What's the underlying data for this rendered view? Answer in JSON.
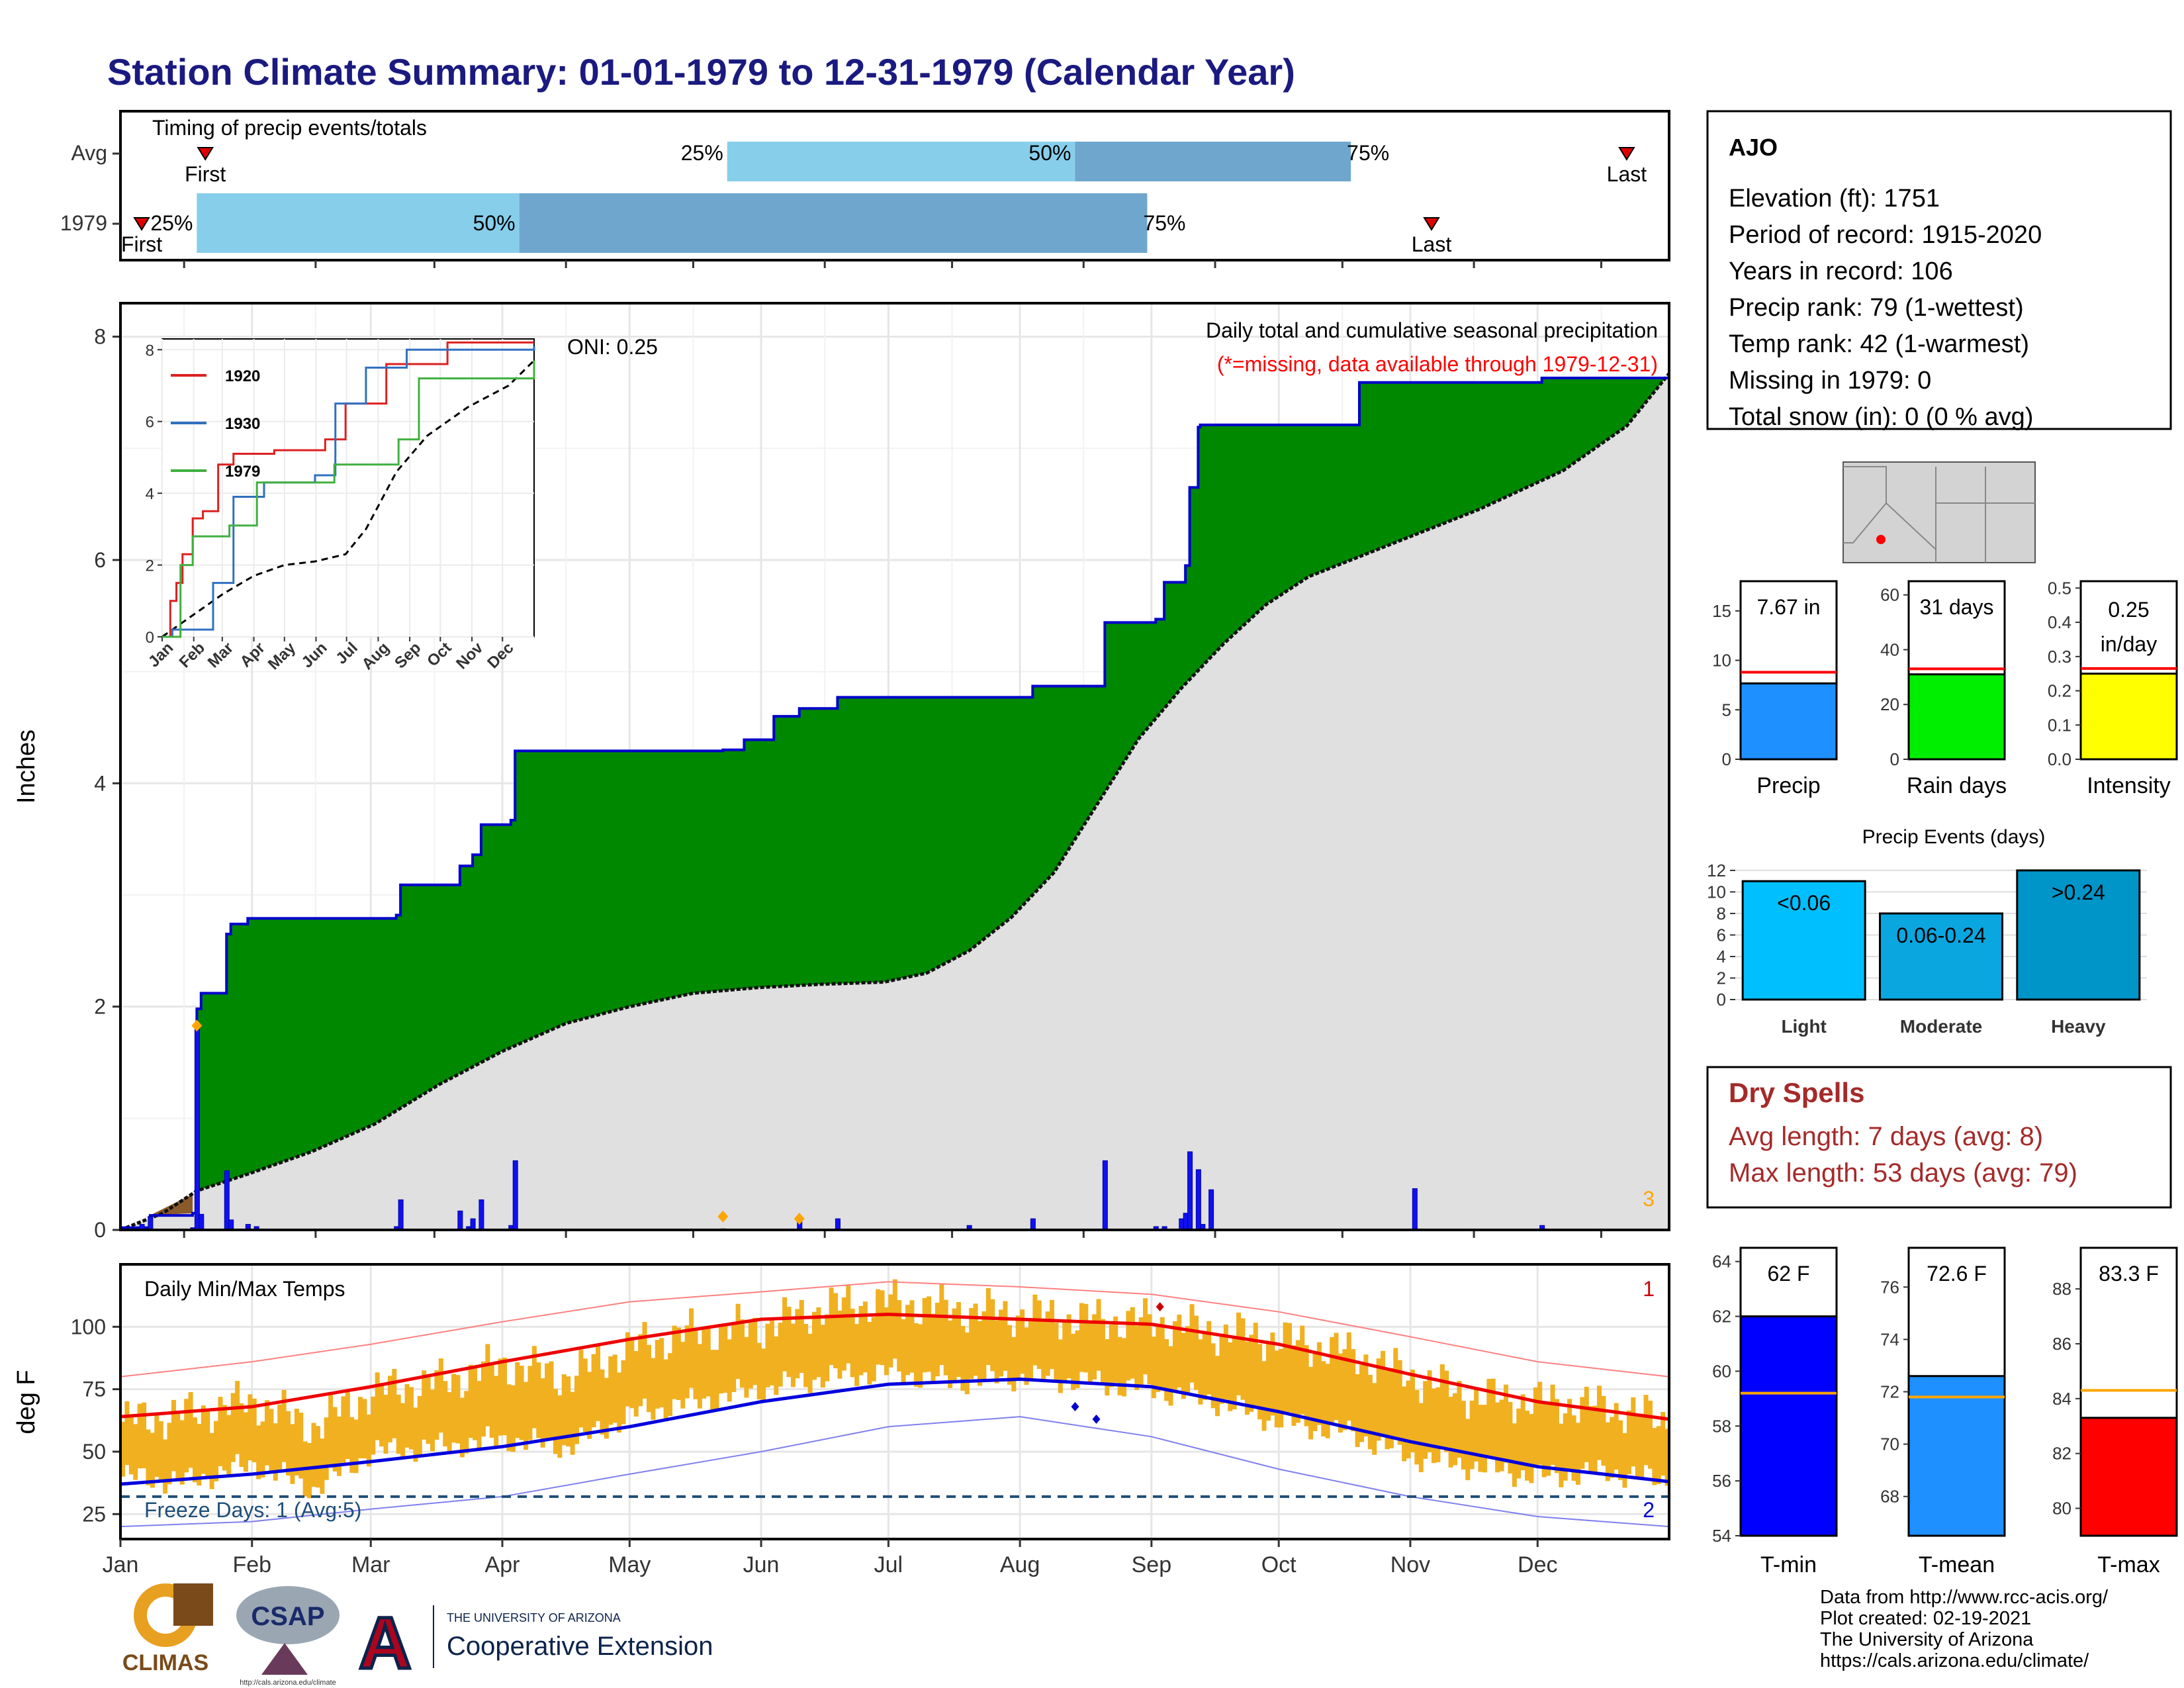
{
  "title": "Station Climate Summary: 01-01-1979 to 12-31-1979 (Calendar Year)",
  "months": [
    "Jan",
    "Feb",
    "Mar",
    "Apr",
    "May",
    "Jun",
    "Jul",
    "Aug",
    "Sep",
    "Oct",
    "Nov",
    "Dec"
  ],
  "colors": {
    "title": "#1a1a80",
    "light_blue": "#87ceeb",
    "mid_blue": "#6ea6cd",
    "green": "#008800",
    "cum_line": "#0000cc",
    "normal_fill": "#e0e0e0",
    "bar_blue": "#1111ee",
    "orange": "#ffa500",
    "red": "#ff0000",
    "dry_spell": "#a52a2a",
    "freeze_line": "#1f4e79",
    "temp_band": "#f0b020"
  },
  "timing": {
    "title": "Timing of precip events/totals",
    "rows": [
      {
        "label": "Avg",
        "first_label": "First",
        "last_label": "Last",
        "first_day": 20,
        "p25_day": 143,
        "p50_day": 225,
        "p75_day": 290,
        "last_day": 355,
        "p25_label": "25%",
        "p50_label": "50%",
        "p75_label": "75%"
      },
      {
        "label": "1979",
        "first_label": "First",
        "last_label": "Last",
        "first_day": 5,
        "p25_day": 18,
        "p50_day": 94,
        "p75_day": 242,
        "last_day": 309,
        "p25_label": "25%",
        "p50_label": "50%",
        "p75_label": "75%"
      }
    ]
  },
  "precip": {
    "ylabel": "Inches",
    "title": "Daily total and cumulative seasonal precipitation",
    "subtitle": "(*=missing, data available through 1979-12-31)",
    "oni": "ONI: 0.25",
    "corner_label": "3",
    "yticks": [
      "0",
      "2",
      "4",
      "6",
      "8"
    ],
    "ylim": [
      0,
      8.3
    ],
    "cumulative_1979": [
      [
        0,
        0.02
      ],
      [
        7,
        0.13
      ],
      [
        17,
        0.15
      ],
      [
        18,
        1.98
      ],
      [
        19,
        2.12
      ],
      [
        25,
        2.65
      ],
      [
        26,
        2.74
      ],
      [
        30,
        2.79
      ],
      [
        65,
        2.82
      ],
      [
        66,
        3.09
      ],
      [
        80,
        3.26
      ],
      [
        83,
        3.36
      ],
      [
        85,
        3.63
      ],
      [
        92,
        3.67
      ],
      [
        93,
        4.29
      ],
      [
        142,
        4.3
      ],
      [
        147,
        4.39
      ],
      [
        154,
        4.6
      ],
      [
        160,
        4.67
      ],
      [
        169,
        4.77
      ],
      [
        215,
        4.87
      ],
      [
        232,
        5.44
      ],
      [
        244,
        5.47
      ],
      [
        246,
        5.8
      ],
      [
        251,
        5.95
      ],
      [
        252,
        6.65
      ],
      [
        254,
        7.19
      ],
      [
        254.5,
        7.21
      ],
      [
        292,
        7.59
      ],
      [
        335,
        7.63
      ],
      [
        365,
        7.67
      ]
    ],
    "normal_cumulative": [
      [
        0,
        0
      ],
      [
        10,
        0.15
      ],
      [
        18,
        0.35
      ],
      [
        30,
        0.5
      ],
      [
        45,
        0.7
      ],
      [
        60,
        0.95
      ],
      [
        75,
        1.3
      ],
      [
        90,
        1.6
      ],
      [
        105,
        1.85
      ],
      [
        120,
        2.0
      ],
      [
        135,
        2.12
      ],
      [
        150,
        2.17
      ],
      [
        165,
        2.2
      ],
      [
        180,
        2.22
      ],
      [
        190,
        2.3
      ],
      [
        200,
        2.5
      ],
      [
        210,
        2.8
      ],
      [
        220,
        3.2
      ],
      [
        230,
        3.8
      ],
      [
        240,
        4.4
      ],
      [
        250,
        4.85
      ],
      [
        260,
        5.25
      ],
      [
        270,
        5.6
      ],
      [
        280,
        5.85
      ],
      [
        300,
        6.15
      ],
      [
        320,
        6.45
      ],
      [
        340,
        6.8
      ],
      [
        355,
        7.2
      ],
      [
        365,
        7.67
      ]
    ],
    "daily_bars": [
      [
        5,
        0.05
      ],
      [
        7,
        0.12
      ],
      [
        17,
        0.02
      ],
      [
        18,
        1.83
      ],
      [
        19,
        0.14
      ],
      [
        25,
        0.53
      ],
      [
        26,
        0.09
      ],
      [
        30,
        0.05
      ],
      [
        32,
        0.03
      ],
      [
        65,
        0.03
      ],
      [
        66,
        0.27
      ],
      [
        80,
        0.17
      ],
      [
        82,
        0.03
      ],
      [
        83,
        0.1
      ],
      [
        85,
        0.27
      ],
      [
        92,
        0.04
      ],
      [
        93,
        0.62
      ],
      [
        142,
        0.01
      ],
      [
        160,
        0.07
      ],
      [
        169,
        0.1
      ],
      [
        200,
        0.04
      ],
      [
        215,
        0.1
      ],
      [
        232,
        0.62
      ],
      [
        244,
        0.03
      ],
      [
        246,
        0.03
      ],
      [
        250,
        0.1
      ],
      [
        251,
        0.15
      ],
      [
        252,
        0.7
      ],
      [
        254,
        0.54
      ],
      [
        255,
        0.05
      ],
      [
        257,
        0.36
      ],
      [
        305,
        0.37
      ],
      [
        335,
        0.04
      ]
    ],
    "missing_markers": [
      [
        18,
        1.83
      ],
      [
        142,
        0.12
      ],
      [
        160,
        0.1
      ]
    ]
  },
  "inset": {
    "yticks": [
      "0",
      "2",
      "4",
      "6",
      "8"
    ],
    "months": [
      "Jan",
      "Feb",
      "Mar",
      "Apr",
      "May",
      "Jun",
      "Jul",
      "Aug",
      "Sep",
      "Oct",
      "Nov",
      "Dec"
    ],
    "legend": [
      {
        "name": "1920",
        "color": "#dd2020"
      },
      {
        "name": "1930",
        "color": "#3070c0"
      },
      {
        "name": "1979",
        "color": "#40b040"
      }
    ],
    "series": {
      "1920": [
        [
          0,
          0
        ],
        [
          8,
          1
        ],
        [
          14,
          1.5
        ],
        [
          20,
          2.3
        ],
        [
          30,
          3.3
        ],
        [
          40,
          3.5
        ],
        [
          55,
          4.8
        ],
        [
          70,
          5.1
        ],
        [
          110,
          5.2
        ],
        [
          160,
          5.5
        ],
        [
          180,
          6.5
        ],
        [
          220,
          7.6
        ],
        [
          280,
          8.2
        ],
        [
          365,
          8.2
        ]
      ],
      "1930": [
        [
          0,
          0
        ],
        [
          10,
          0.2
        ],
        [
          50,
          1.5
        ],
        [
          70,
          3.9
        ],
        [
          100,
          4.3
        ],
        [
          150,
          4.5
        ],
        [
          170,
          6.5
        ],
        [
          200,
          7.5
        ],
        [
          240,
          8.0
        ],
        [
          365,
          8.1
        ]
      ],
      "1979": [
        [
          0,
          0
        ],
        [
          18,
          2.0
        ],
        [
          30,
          2.8
        ],
        [
          66,
          3.1
        ],
        [
          93,
          4.3
        ],
        [
          169,
          4.8
        ],
        [
          232,
          5.5
        ],
        [
          252,
          7.2
        ],
        [
          365,
          7.7
        ]
      ],
      "normal": [
        [
          0,
          0
        ],
        [
          30,
          0.6
        ],
        [
          60,
          1.2
        ],
        [
          90,
          1.7
        ],
        [
          120,
          2.0
        ],
        [
          150,
          2.1
        ],
        [
          180,
          2.3
        ],
        [
          200,
          3.0
        ],
        [
          230,
          4.6
        ],
        [
          260,
          5.6
        ],
        [
          300,
          6.4
        ],
        [
          340,
          7.0
        ],
        [
          365,
          7.7
        ]
      ]
    }
  },
  "temps": {
    "ylabel": "deg F",
    "title": "Daily Min/Max Temps",
    "freeze_label": "Freeze Days: 1 (Avg:5)",
    "freeze_line_value": 32,
    "corner_top": "1",
    "corner_bottom": "2",
    "yticks": [
      "25",
      "50",
      "75",
      "100"
    ],
    "ylim": [
      15,
      125
    ],
    "normal_max": [
      [
        0,
        64
      ],
      [
        31,
        68
      ],
      [
        59,
        76
      ],
      [
        90,
        86
      ],
      [
        120,
        95
      ],
      [
        151,
        103
      ],
      [
        181,
        105
      ],
      [
        212,
        103
      ],
      [
        243,
        101
      ],
      [
        273,
        93
      ],
      [
        304,
        81
      ],
      [
        334,
        70
      ],
      [
        365,
        63
      ]
    ],
    "normal_min": [
      [
        0,
        37
      ],
      [
        31,
        41
      ],
      [
        59,
        46
      ],
      [
        90,
        52
      ],
      [
        120,
        60
      ],
      [
        151,
        70
      ],
      [
        181,
        77
      ],
      [
        212,
        79
      ],
      [
        243,
        76
      ],
      [
        273,
        66
      ],
      [
        304,
        54
      ],
      [
        334,
        44
      ],
      [
        365,
        38
      ]
    ],
    "record_max": [
      [
        0,
        80
      ],
      [
        31,
        86
      ],
      [
        59,
        93
      ],
      [
        90,
        102
      ],
      [
        120,
        110
      ],
      [
        151,
        114
      ],
      [
        181,
        118
      ],
      [
        212,
        116
      ],
      [
        243,
        113
      ],
      [
        273,
        106
      ],
      [
        304,
        96
      ],
      [
        334,
        86
      ],
      [
        365,
        80
      ]
    ],
    "record_min": [
      [
        0,
        20
      ],
      [
        31,
        22
      ],
      [
        59,
        27
      ],
      [
        90,
        32
      ],
      [
        120,
        41
      ],
      [
        151,
        50
      ],
      [
        181,
        60
      ],
      [
        212,
        64
      ],
      [
        243,
        56
      ],
      [
        273,
        43
      ],
      [
        304,
        32
      ],
      [
        334,
        24
      ],
      [
        365,
        20
      ]
    ],
    "daily_max_1979": [
      [
        0,
        62
      ],
      [
        15,
        65
      ],
      [
        31,
        70
      ],
      [
        45,
        60
      ],
      [
        59,
        74
      ],
      [
        75,
        78
      ],
      [
        90,
        85
      ],
      [
        105,
        80
      ],
      [
        120,
        92
      ],
      [
        135,
        98
      ],
      [
        151,
        100
      ],
      [
        166,
        108
      ],
      [
        181,
        110
      ],
      [
        196,
        107
      ],
      [
        212,
        105
      ],
      [
        227,
        103
      ],
      [
        243,
        102
      ],
      [
        258,
        98
      ],
      [
        273,
        95
      ],
      [
        288,
        90
      ],
      [
        304,
        80
      ],
      [
        319,
        72
      ],
      [
        334,
        70
      ],
      [
        350,
        68
      ],
      [
        365,
        62
      ]
    ],
    "daily_min_1979": [
      [
        0,
        40
      ],
      [
        15,
        38
      ],
      [
        31,
        45
      ],
      [
        45,
        35
      ],
      [
        59,
        50
      ],
      [
        75,
        52
      ],
      [
        90,
        55
      ],
      [
        105,
        52
      ],
      [
        120,
        65
      ],
      [
        135,
        70
      ],
      [
        151,
        75
      ],
      [
        166,
        80
      ],
      [
        181,
        82
      ],
      [
        196,
        78
      ],
      [
        212,
        80
      ],
      [
        227,
        78
      ],
      [
        243,
        75
      ],
      [
        258,
        70
      ],
      [
        273,
        62
      ],
      [
        288,
        58
      ],
      [
        304,
        48
      ],
      [
        319,
        44
      ],
      [
        334,
        40
      ],
      [
        350,
        42
      ],
      [
        365,
        38
      ]
    ],
    "markers": [
      {
        "day": 245,
        "value": 108,
        "color": "#cc0000"
      },
      {
        "day": 225,
        "value": 68,
        "color": "#0000cc"
      },
      {
        "day": 230,
        "value": 63,
        "color": "#0000cc"
      }
    ]
  },
  "station": {
    "name": "AJO",
    "lines": [
      "Elevation (ft): 1751",
      "Period of record: 1915-2020",
      "Years in record: 106",
      "Precip rank: 79 (1-wettest)",
      "Temp rank: 42 (1-warmest)",
      "Missing in 1979: 0",
      "Total snow (in): 0 (0 % avg)"
    ]
  },
  "summary_bars": [
    {
      "label": "Precip",
      "value": 7.67,
      "value_text": "7.67 in",
      "avg": 8.8,
      "ymax": 18,
      "yticks": [
        "0",
        "5",
        "10",
        "15"
      ],
      "tick_values": [
        0,
        5,
        10,
        15
      ],
      "color": "#1e90ff"
    },
    {
      "label": "Rain days",
      "value": 31,
      "value_text": "31 days",
      "avg": 33,
      "ymax": 65,
      "yticks": [
        "0",
        "20",
        "40",
        "60"
      ],
      "tick_values": [
        0,
        20,
        40,
        60
      ],
      "color": "#00ee00"
    },
    {
      "label": "Intensity",
      "value": 0.25,
      "value_text": "0.25 in/day",
      "avg": 0.265,
      "ymax": 0.52,
      "yticks": [
        "0.0",
        "0.1",
        "0.2",
        "0.3",
        "0.4",
        "0.5"
      ],
      "tick_values": [
        0,
        0.1,
        0.2,
        0.3,
        0.4,
        0.5
      ],
      "color": "#ffff00"
    }
  ],
  "precip_events": {
    "title": "Precip Events (days)",
    "yticks": [
      "0",
      "2",
      "4",
      "6",
      "8",
      "10",
      "12"
    ],
    "ymax": 12.3,
    "bars": [
      {
        "label": "Light",
        "value": 11,
        "value_text": "<0.06",
        "color": "#00bfff"
      },
      {
        "label": "Moderate",
        "value": 8,
        "value_text": "0.06-0.24",
        "color": "#0aa6e0"
      },
      {
        "label": "Heavy",
        "value": 12,
        "value_text": ">0.24",
        "color": "#0095c8"
      }
    ]
  },
  "dry_spells": {
    "title": "Dry Spells",
    "avg_length": "Avg length: 7 days (avg: 8)",
    "max_length": "Max length: 53 days (avg: 79)"
  },
  "temp_bars": [
    {
      "label": "T-min",
      "value": 62,
      "value_text": "62 F",
      "avg": 59.2,
      "ymin": 54,
      "ymax": 64.5,
      "yticks": [
        "54",
        "56",
        "58",
        "60",
        "62",
        "64"
      ],
      "tick_values": [
        54,
        56,
        58,
        60,
        62,
        64
      ],
      "color": "#0000ff"
    },
    {
      "label": "T-mean",
      "value": 72.6,
      "value_text": "72.6 F",
      "avg": 71.8,
      "ymin": 66.5,
      "ymax": 77.5,
      "yticks": [
        "68",
        "70",
        "72",
        "74",
        "76"
      ],
      "tick_values": [
        68,
        70,
        72,
        74,
        76
      ],
      "color": "#1e90ff"
    },
    {
      "label": "T-max",
      "value": 83.3,
      "value_text": "83.3 F",
      "avg": 84.3,
      "ymin": 79,
      "ymax": 89.5,
      "yticks": [
        "80",
        "82",
        "84",
        "86",
        "88"
      ],
      "tick_values": [
        80,
        82,
        84,
        86,
        88
      ],
      "color": "#ff0000"
    }
  ],
  "footer": {
    "lines": [
      "Data from http://www.rcc-acis.org/",
      "Plot created: 02-19-2021",
      "The University of Arizona",
      "https://cals.arizona.edu/climate/"
    ],
    "logos": {
      "climas": "CLIMAS",
      "csap": "CSAP",
      "csap_url": "http://cals.arizona.edu/climate",
      "ua_small": "THE UNIVERSITY OF ARIZONA",
      "ua_big": "Cooperative Extension"
    }
  }
}
